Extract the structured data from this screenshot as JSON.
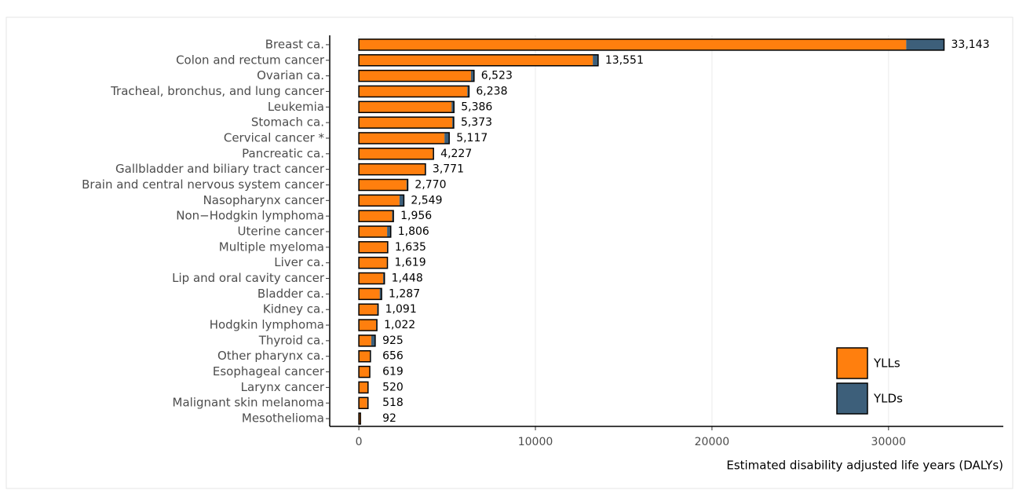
{
  "chart_data": {
    "type": "stacked-bar",
    "orientation": "horizontal",
    "categories": [
      "Breast ca.",
      "Colon and rectum cancer",
      "Ovarian ca.",
      "Tracheal, bronchus, and lung cancer",
      "Leukemia",
      "Stomach ca.",
      "Cervical cancer *",
      "Pancreatic ca.",
      "Gallbladder and biliary tract cancer",
      "Brain and central nervous system cancer",
      "Nasopharynx cancer",
      "Non−Hodgkin lymphoma",
      "Uterine cancer",
      "Multiple myeloma",
      "Liver ca.",
      "Lip and oral cavity cancer",
      "Bladder ca.",
      "Kidney ca.",
      "Hodgkin lymphoma",
      "Thyroid ca.",
      "Other pharynx ca.",
      "Esophageal cancer",
      "Larynx cancer",
      "Malignant skin melanoma",
      "Mesothelioma"
    ],
    "series": [
      {
        "name": "YLLs",
        "color": "#ff7f0e",
        "values": [
          31000,
          13250,
          6350,
          6140,
          5250,
          5290,
          4850,
          4190,
          3730,
          2700,
          2300,
          1880,
          1600,
          1590,
          1590,
          1370,
          1180,
          1030,
          980,
          700,
          630,
          600,
          490,
          470,
          90
        ]
      },
      {
        "name": "YLDs",
        "color": "#3d5f7a",
        "values": [
          2143,
          301,
          173,
          98,
          136,
          83,
          267,
          37,
          41,
          70,
          249,
          76,
          206,
          45,
          29,
          78,
          107,
          61,
          42,
          225,
          26,
          19,
          30,
          48,
          2
        ]
      }
    ],
    "totals": {
      "values": [
        33143,
        13551,
        6523,
        6238,
        5386,
        5373,
        5117,
        4227,
        3771,
        2770,
        2549,
        1956,
        1806,
        1635,
        1619,
        1448,
        1287,
        1091,
        1022,
        925,
        656,
        619,
        520,
        518,
        92
      ],
      "value_labels": [
        "33,143",
        "13,551",
        "6,523",
        "6,238",
        "5,386",
        "5,373",
        "5,117",
        "4,227",
        "3,771",
        "2,770",
        "2,549",
        "1,956",
        "1,806",
        "1,635",
        "1,619",
        "1,448",
        "1,287",
        "1,091",
        "1,022",
        "925",
        "656",
        "619",
        "520",
        "518",
        "92"
      ]
    },
    "xlabel": "Estimated disability adjusted life years (DALYs)",
    "xlim": [
      -1650,
      36500
    ],
    "xticks": [
      0,
      10000,
      20000,
      30000
    ],
    "grid": true,
    "legend": "lower right"
  }
}
